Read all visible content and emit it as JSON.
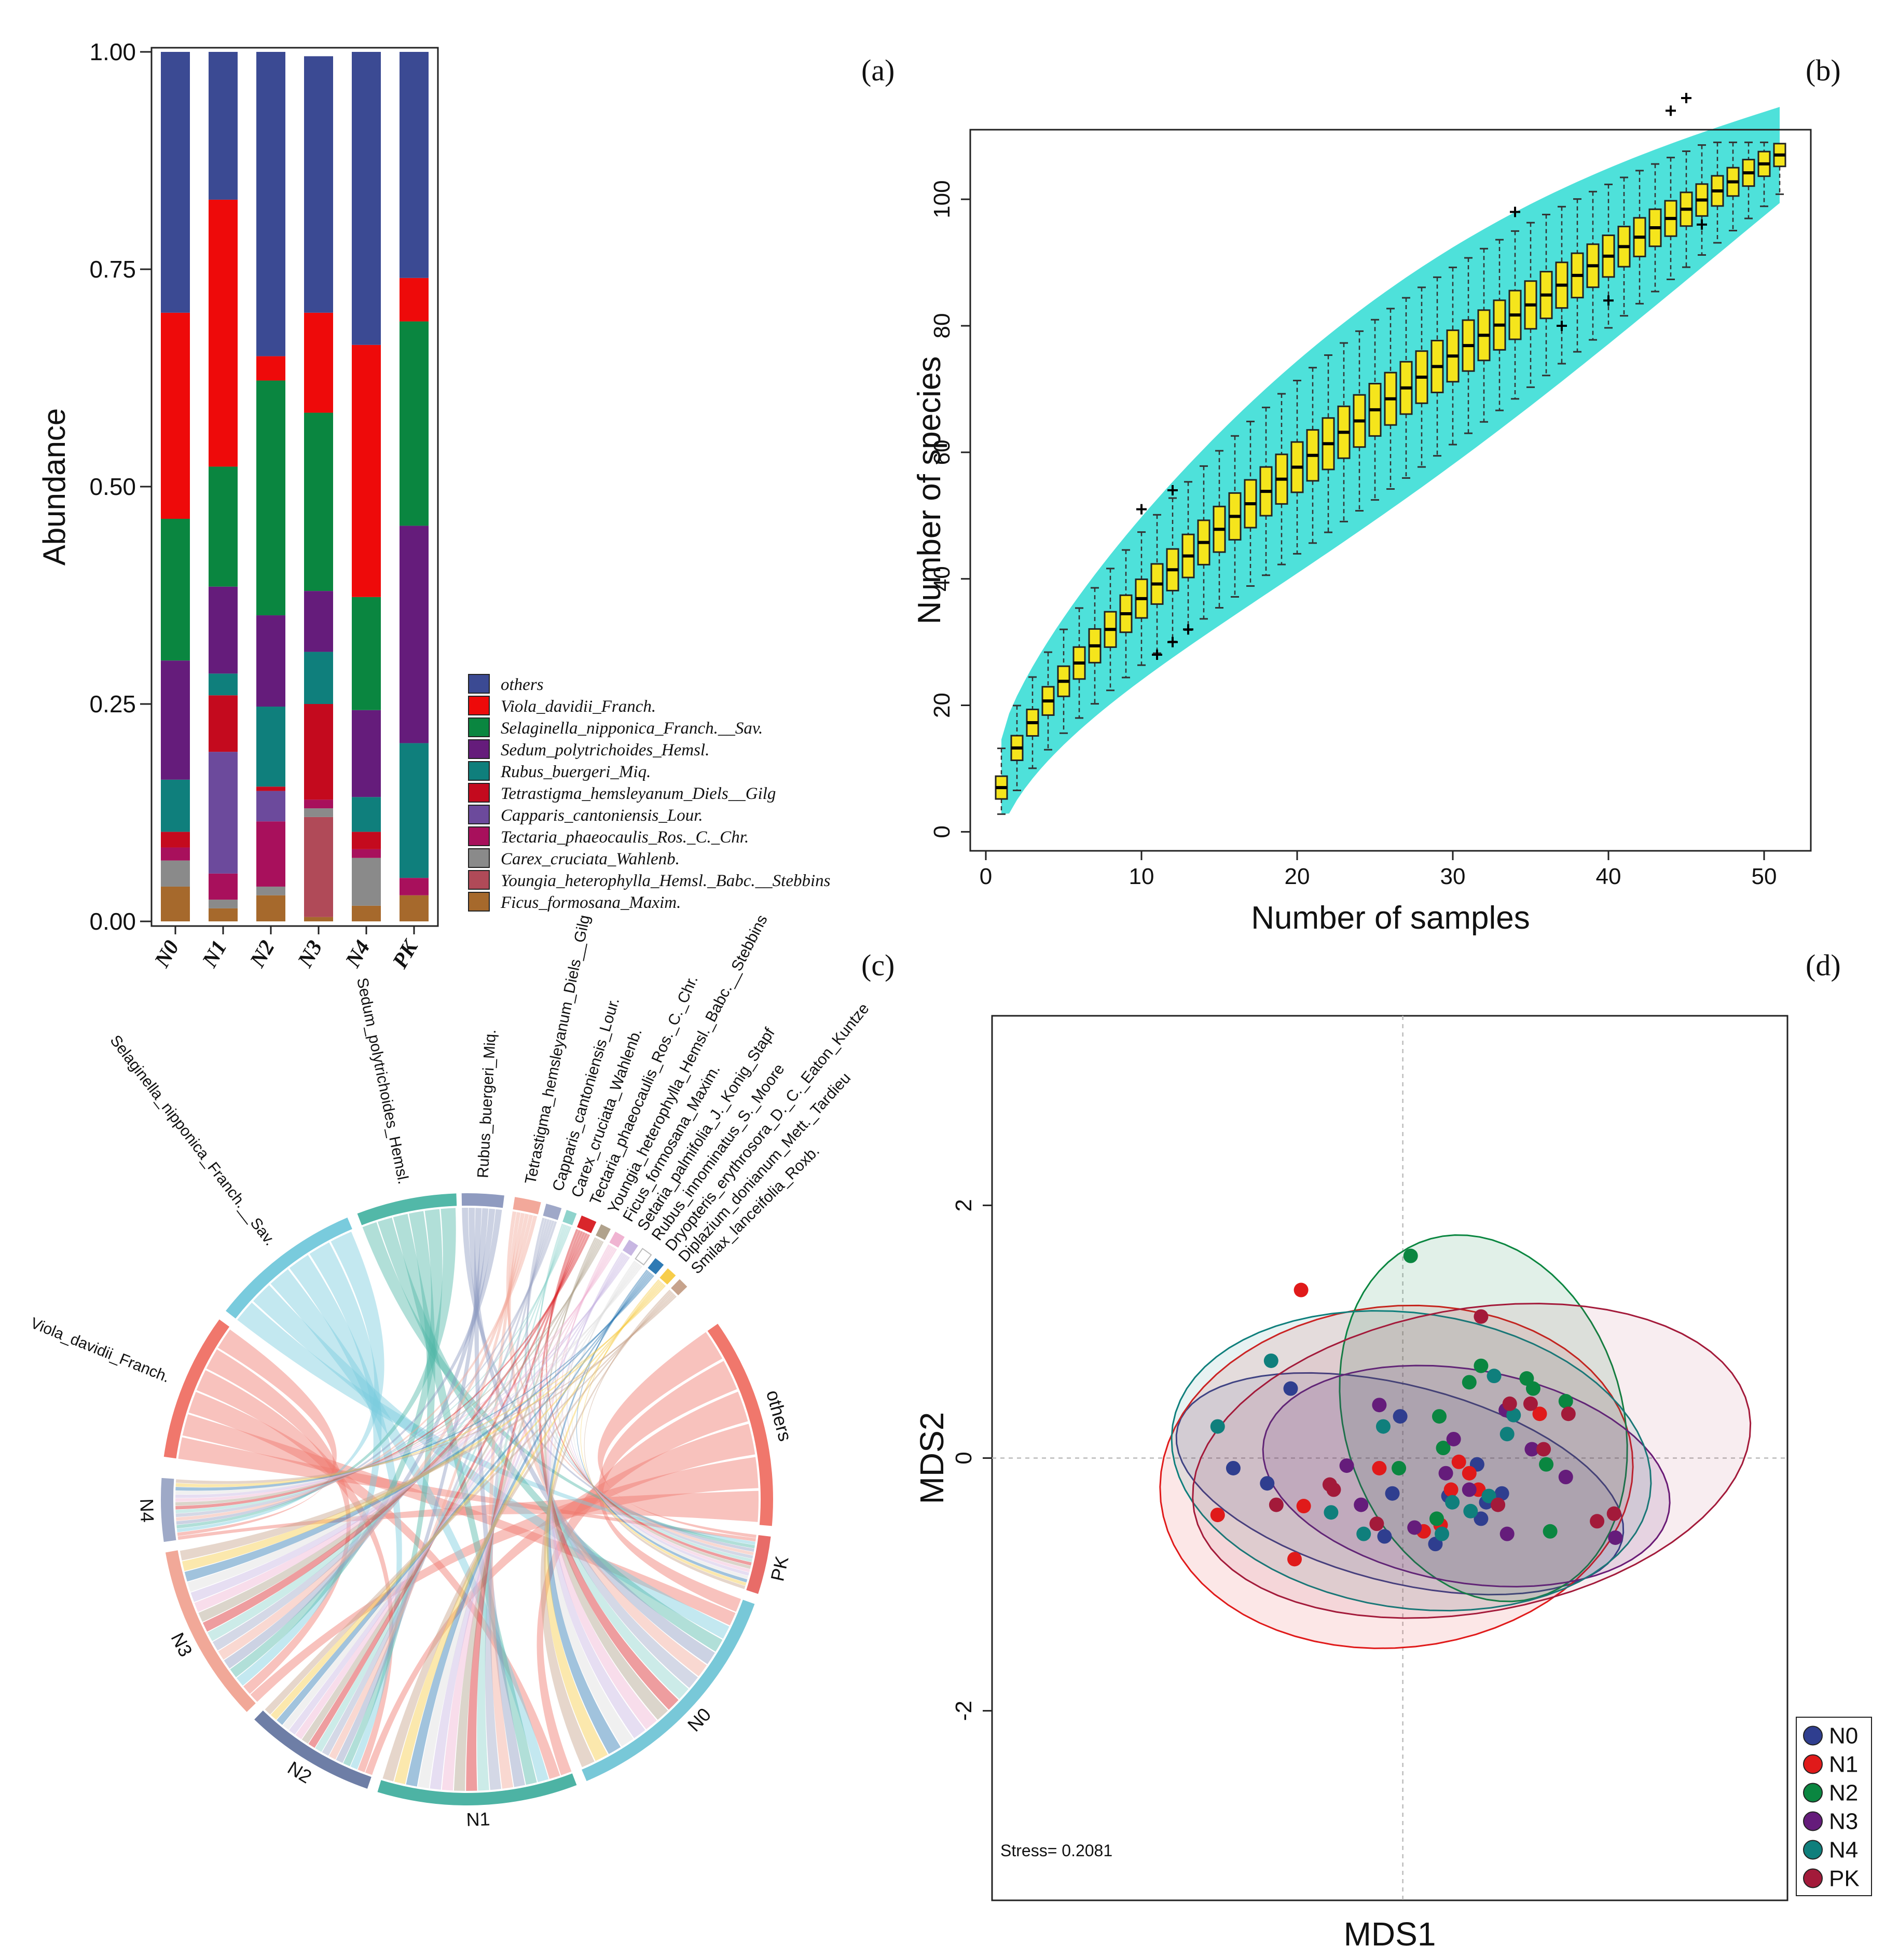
{
  "panels": {
    "a": "(a)",
    "b": "(b)",
    "c": "(c)",
    "d": "(d)"
  },
  "chart_data": [
    {
      "panel": "(a)",
      "type": "bar",
      "stacked": true,
      "ylabel": "Abundance",
      "ylim": [
        0,
        1
      ],
      "yticks": [
        "0.00",
        "0.25",
        "0.50",
        "0.75",
        "1.00"
      ],
      "categories": [
        "N0",
        "N1",
        "N2",
        "N3",
        "N4",
        "PK"
      ],
      "series": [
        {
          "name": "Ficus_formosana_Maxim.",
          "color": "#a6692c",
          "values": [
            0.04,
            0.015,
            0.03,
            0.005,
            0.018,
            0.03
          ]
        },
        {
          "name": "Youngia_heterophylla_Hemsl._Babc.__Stebbins",
          "color": "#b04a58",
          "values": [
            0.0,
            0.0,
            0.0,
            0.115,
            0.0,
            0.0
          ]
        },
        {
          "name": "Carex_cruciata_Wahlenb.",
          "color": "#8a8a8a",
          "values": [
            0.03,
            0.01,
            0.01,
            0.01,
            0.055,
            0.0
          ]
        },
        {
          "name": "Tectaria_phaeocaulis_Ros._C._Chr.",
          "color": "#a8105c",
          "values": [
            0.015,
            0.03,
            0.075,
            0.01,
            0.01,
            0.02
          ]
        },
        {
          "name": "Capparis_cantoniensis_Lour.",
          "color": "#6c4a9c",
          "values": [
            0.0,
            0.14,
            0.035,
            0.0,
            0.0,
            0.0
          ]
        },
        {
          "name": "Tetrastigma_hemsleyanum_Diels__Gilg",
          "color": "#c40a1e",
          "values": [
            0.018,
            0.065,
            0.005,
            0.11,
            0.02,
            0.0
          ]
        },
        {
          "name": "Rubus_buergeri_Miq.",
          "color": "#0f7f7c",
          "values": [
            0.06,
            0.025,
            0.092,
            0.06,
            0.04,
            0.155
          ]
        },
        {
          "name": "Sedum_polytrichoides_Hemsl.",
          "color": "#651c7b",
          "values": [
            0.137,
            0.1,
            0.105,
            0.07,
            0.1,
            0.25
          ]
        },
        {
          "name": "Selaginella_nipponica_Franch.__Sav.",
          "color": "#0a8640",
          "values": [
            0.163,
            0.138,
            0.27,
            0.205,
            0.13,
            0.235
          ]
        },
        {
          "name": "Viola_davidii_Franch.",
          "color": "#ee0a0a",
          "values": [
            0.237,
            0.307,
            0.028,
            0.115,
            0.29,
            0.05
          ]
        },
        {
          "name": "others",
          "color": "#3b4a93",
          "values": [
            0.3,
            0.17,
            0.35,
            0.295,
            0.337,
            0.26
          ]
        }
      ],
      "legend": [
        "others",
        "Viola_davidii_Franch.",
        "Selaginella_nipponica_Franch.__Sav.",
        "Sedum_polytrichoides_Hemsl.",
        "Rubus_buergeri_Miq.",
        "Tetrastigma_hemsleyanum_Diels__Gilg",
        "Capparis_cantoniensis_Lour.",
        "Tectaria_phaeocaulis_Ros._C._Chr.",
        "Carex_cruciata_Wahlenb.",
        "Youngia_heterophylla_Hemsl._Babc.__Stebbins",
        "Ficus_formosana_Maxim."
      ]
    },
    {
      "panel": "(b)",
      "type": "box",
      "xlabel": "Number of samples",
      "ylabel": "Number of species",
      "xlim": [
        -1,
        53
      ],
      "ylim": [
        -3,
        111
      ],
      "xticks": [
        0,
        10,
        20,
        30,
        40,
        50
      ],
      "yticks": [
        0,
        20,
        40,
        60,
        80,
        100
      ],
      "x_range": [
        1,
        51
      ],
      "median_model": "median = 107 * ((n - 1) / 50) ^ 0.72 + 7 * (1 - (n - 1) / 50)",
      "outliers": [
        [
          10,
          51
        ],
        [
          12,
          54
        ],
        [
          34,
          98
        ],
        [
          44,
          114
        ],
        [
          45,
          116
        ],
        [
          11,
          28
        ],
        [
          12,
          30
        ],
        [
          13,
          32
        ],
        [
          37,
          80
        ],
        [
          40,
          84
        ],
        [
          46,
          96
        ]
      ]
    },
    {
      "panel": "(c)",
      "type": "chord",
      "sectors": [
        {
          "name": "others",
          "color": "#f0776c"
        },
        {
          "name": "PK",
          "color": "#e86c68"
        },
        {
          "name": "N0",
          "color": "#78c8d8"
        },
        {
          "name": "N1",
          "color": "#4db3a4"
        },
        {
          "name": "N2",
          "color": "#6e7ea6"
        },
        {
          "name": "N3",
          "color": "#f1a898"
        },
        {
          "name": "N4",
          "color": "#9ea9c7"
        },
        {
          "name": "Viola_davidii_Franch.",
          "color": "#f0776c"
        },
        {
          "name": "Selaginella_nipponica_Franch.__Sav.",
          "color": "#79cbdd"
        },
        {
          "name": "Sedum_polytrichoides_Hemsl.",
          "color": "#52b8a8"
        },
        {
          "name": "Rubus_buergeri_Miq.",
          "color": "#8f9bc0"
        },
        {
          "name": "Tetrastigma_hemsleyanum_Diels__Gilg",
          "color": "#f2a89a"
        },
        {
          "name": "Capparis_cantoniensis_Lour.",
          "color": "#9fa8c8"
        },
        {
          "name": "Carex_cruciata_Wahlenb.",
          "color": "#8fd3cc"
        },
        {
          "name": "Tectaria_phaeocaulis_Ros._C._Chr.",
          "color": "#d9262b"
        },
        {
          "name": "Youngia_heterophylla_Hemsl._Babc.__Stebbins",
          "color": "#b0a28c"
        },
        {
          "name": "Ficus_formosana_Maxim.",
          "color": "#f0b4d2"
        },
        {
          "name": "Setaria_palmifolia_J._Konig_Stapf",
          "color": "#c7b6e2"
        },
        {
          "name": "Rubus_innominatus_S._Moore",
          "color": "#ffffff"
        },
        {
          "name": "Dryopteris_erythrosora_D._C._Eaton_Kuntze",
          "color": "#2e7ab4"
        },
        {
          "name": "Diplazium_donianum_Mett._Tardieu",
          "color": "#f7cd4a"
        },
        {
          "name": "Smilax_lanceifolia_Roxb.",
          "color": "#c7a38c"
        }
      ]
    },
    {
      "panel": "(d)",
      "type": "scatter",
      "xlabel": "MDS1",
      "ylabel": "MDS2",
      "xlim": [
        -3.15,
        2.95
      ],
      "ylim": [
        -3.5,
        3.5
      ],
      "yticks": [
        -2,
        0,
        2
      ],
      "annotation": "Stress= 0.2081",
      "groups": [
        {
          "name": "N0",
          "color": "#2f3e8f",
          "points": [
            [
              -1.3,
              -0.08
            ],
            [
              -1.04,
              -0.2
            ],
            [
              -0.86,
              0.55
            ],
            [
              -0.14,
              -0.62
            ],
            [
              -0.08,
              -0.28
            ],
            [
              -0.02,
              0.33
            ],
            [
              0.25,
              -0.68
            ],
            [
              0.35,
              -0.3
            ],
            [
              0.57,
              -0.05
            ],
            [
              0.6,
              -0.48
            ],
            [
              0.64,
              -0.35
            ],
            [
              0.76,
              -0.28
            ]
          ]
        },
        {
          "name": "N1",
          "color": "#e01a1a",
          "points": [
            [
              -1.42,
              -0.45
            ],
            [
              -0.78,
              1.33
            ],
            [
              -0.83,
              -0.8
            ],
            [
              -0.76,
              -0.38
            ],
            [
              -0.18,
              -0.08
            ],
            [
              0.16,
              -0.58
            ],
            [
              0.29,
              -0.53
            ],
            [
              0.37,
              -0.25
            ],
            [
              0.43,
              -0.03
            ],
            [
              0.51,
              -0.12
            ],
            [
              0.58,
              -0.25
            ],
            [
              1.05,
              0.35
            ]
          ]
        },
        {
          "name": "N2",
          "color": "#0a8640",
          "points": [
            [
              0.06,
              1.6
            ],
            [
              -0.03,
              -0.08
            ],
            [
              0.26,
              -0.48
            ],
            [
              0.31,
              0.08
            ],
            [
              0.51,
              0.6
            ],
            [
              0.6,
              0.73
            ],
            [
              0.95,
              0.63
            ],
            [
              1.0,
              0.55
            ],
            [
              1.1,
              -0.05
            ],
            [
              1.13,
              -0.58
            ],
            [
              1.25,
              0.45
            ],
            [
              0.28,
              0.33
            ]
          ]
        },
        {
          "name": "N3",
          "color": "#651c7b",
          "points": [
            [
              -0.43,
              -0.06
            ],
            [
              -0.18,
              0.42
            ],
            [
              -0.32,
              -0.37
            ],
            [
              0.09,
              -0.55
            ],
            [
              0.33,
              -0.12
            ],
            [
              0.39,
              0.15
            ],
            [
              0.51,
              -0.25
            ],
            [
              0.79,
              0.38
            ],
            [
              0.8,
              -0.6
            ],
            [
              0.99,
              0.07
            ],
            [
              1.25,
              -0.15
            ],
            [
              1.63,
              -0.63
            ]
          ]
        },
        {
          "name": "N4",
          "color": "#0f7f7c",
          "points": [
            [
              -1.42,
              0.25
            ],
            [
              -1.01,
              0.77
            ],
            [
              -0.55,
              -0.43
            ],
            [
              -0.3,
              -0.6
            ],
            [
              -0.15,
              0.25
            ],
            [
              0.3,
              -0.6
            ],
            [
              0.38,
              -0.35
            ],
            [
              0.52,
              -0.42
            ],
            [
              0.7,
              0.65
            ],
            [
              0.8,
              0.19
            ],
            [
              0.85,
              0.34
            ],
            [
              0.66,
              -0.3
            ]
          ]
        },
        {
          "name": "PK",
          "color": "#a31a3a",
          "points": [
            [
              -0.97,
              -0.37
            ],
            [
              -0.56,
              -0.21
            ],
            [
              -0.53,
              -0.25
            ],
            [
              -0.2,
              -0.52
            ],
            [
              0.6,
              1.12
            ],
            [
              0.73,
              -0.37
            ],
            [
              0.82,
              0.43
            ],
            [
              0.98,
              0.43
            ],
            [
              1.08,
              0.07
            ],
            [
              1.27,
              0.35
            ],
            [
              1.49,
              -0.5
            ],
            [
              1.62,
              -0.44
            ]
          ]
        }
      ],
      "ellipses": [
        {
          "group": "N0",
          "color": "#2f3e8f",
          "fill": "rgba(47,62,143,0.10)"
        },
        {
          "group": "N1",
          "color": "#e01a1a",
          "fill": "rgba(230,60,60,0.12)"
        },
        {
          "group": "N2",
          "color": "#0a8640",
          "fill": "rgba(10,134,64,0.12)"
        },
        {
          "group": "N3",
          "color": "#651c7b",
          "fill": "rgba(101,28,123,0.12)"
        },
        {
          "group": "N4",
          "color": "#0f7f7c",
          "fill": "rgba(15,127,124,0.10)"
        },
        {
          "group": "PK",
          "color": "#a31a3a",
          "fill": "rgba(163,26,58,0.08)"
        }
      ]
    }
  ]
}
